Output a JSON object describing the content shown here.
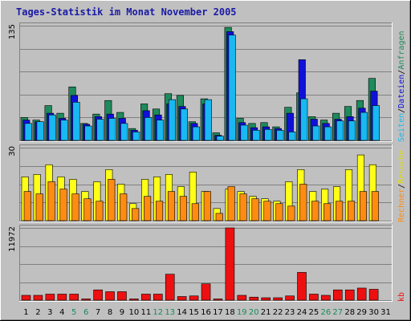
{
  "title": "Tages-Statistik im Monat November 2005",
  "colors": {
    "background": "#c0c0c0",
    "plot": "#c0c0c0",
    "hits": "#1f8a5c",
    "files": "#1010d8",
    "pages": "#19b8f0",
    "visits": "#ffff18",
    "sites": "#ff8c10",
    "kbytes": "#ee1010",
    "weekday_label": "#000000",
    "weekend_label": "#1a8a5a"
  },
  "chart_data": [
    {
      "type": "bar",
      "panel": "top",
      "ytick": "135",
      "ylim": [
        0,
        135
      ],
      "right_labels": [
        {
          "text": "Anfragen",
          "color": "#1f8a5c"
        },
        {
          "text": "/",
          "color": "#000000"
        },
        {
          "text": "Dateien",
          "color": "#1010d8"
        },
        {
          "text": "/",
          "color": "#000000"
        },
        {
          "text": "Seiten",
          "color": "#19b8f0"
        }
      ],
      "categories": [
        "1",
        "2",
        "3",
        "4",
        "5",
        "6",
        "7",
        "8",
        "9",
        "10",
        "11",
        "12",
        "13",
        "14",
        "15",
        "16",
        "17",
        "18",
        "19",
        "20",
        "21",
        "22",
        "23",
        "24",
        "25",
        "26",
        "27",
        "28",
        "29",
        "30",
        "31"
      ],
      "weekend_days": [
        "5",
        "6",
        "12",
        "13",
        "19",
        "20",
        "26",
        "27"
      ],
      "series": [
        {
          "name": "Anfragen",
          "color": "#1f8a5c",
          "values": [
            27,
            24,
            41,
            32,
            63,
            20,
            31,
            47,
            33,
            14,
            43,
            37,
            55,
            53,
            22,
            49,
            9,
            133,
            26,
            20,
            21,
            16,
            39,
            56,
            28,
            24,
            32,
            40,
            47,
            73,
            0
          ]
        },
        {
          "name": "Dateien",
          "color": "#1010d8",
          "values": [
            24,
            22,
            32,
            26,
            53,
            19,
            28,
            31,
            26,
            12,
            35,
            30,
            43,
            40,
            20,
            43,
            6,
            128,
            21,
            15,
            16,
            14,
            32,
            95,
            25,
            20,
            25,
            28,
            38,
            58,
            0
          ]
        },
        {
          "name": "Seiten",
          "color": "#19b8f0",
          "values": [
            20,
            22,
            30,
            24,
            45,
            17,
            25,
            26,
            20,
            10,
            27,
            24,
            48,
            37,
            16,
            48,
            5,
            124,
            18,
            12,
            13,
            12,
            10,
            49,
            17,
            16,
            23,
            23,
            33,
            41,
            0
          ]
        }
      ]
    },
    {
      "type": "bar",
      "panel": "middle",
      "ytick": "30",
      "ylim": [
        0,
        30
      ],
      "right_labels": [
        {
          "text": "Besuche",
          "color": "#dcdc10"
        },
        {
          "text": "/",
          "color": "#000000"
        },
        {
          "text": "Rechner",
          "color": "#ff8c10"
        }
      ],
      "categories": [
        "1",
        "2",
        "3",
        "4",
        "5",
        "6",
        "7",
        "8",
        "9",
        "10",
        "11",
        "12",
        "13",
        "14",
        "15",
        "16",
        "17",
        "18",
        "19",
        "20",
        "21",
        "22",
        "23",
        "24",
        "25",
        "26",
        "27",
        "28",
        "29",
        "30",
        "31"
      ],
      "series": [
        {
          "name": "Besuche",
          "color": "#ffff18",
          "values": [
            18,
            19,
            23,
            18,
            17,
            12,
            16,
            21,
            15,
            7,
            17,
            18,
            19,
            14,
            20,
            12,
            5,
            13,
            12,
            10,
            9,
            8,
            16,
            21,
            12,
            13,
            14,
            21,
            27,
            23,
            0
          ]
        },
        {
          "name": "Rechner",
          "color": "#ff8c10",
          "values": [
            12,
            11,
            16,
            13,
            11,
            9,
            8,
            17,
            11,
            5,
            10,
            8,
            12,
            10,
            7,
            12,
            3,
            14,
            11,
            9,
            8,
            7,
            6,
            15,
            8,
            7,
            8,
            8,
            12,
            12,
            0
          ]
        }
      ]
    },
    {
      "type": "bar",
      "panel": "bottom",
      "ytick": "11972",
      "ylim": [
        0,
        11972
      ],
      "right_labels": [
        {
          "text": "kb",
          "color": "#ee1010"
        }
      ],
      "categories": [
        "1",
        "2",
        "3",
        "4",
        "5",
        "6",
        "7",
        "8",
        "9",
        "10",
        "11",
        "12",
        "13",
        "14",
        "15",
        "16",
        "17",
        "18",
        "19",
        "20",
        "21",
        "22",
        "23",
        "24",
        "25",
        "26",
        "27",
        "28",
        "29",
        "30",
        "31"
      ],
      "series": [
        {
          "name": "kb",
          "color": "#ee1010",
          "values": [
            800,
            800,
            1000,
            1000,
            1000,
            200,
            1700,
            1400,
            1400,
            200,
            1000,
            1000,
            4300,
            600,
            700,
            2700,
            200,
            11972,
            800,
            500,
            400,
            400,
            700,
            4600,
            1000,
            800,
            1700,
            1700,
            2000,
            1800,
            0
          ]
        }
      ]
    }
  ]
}
